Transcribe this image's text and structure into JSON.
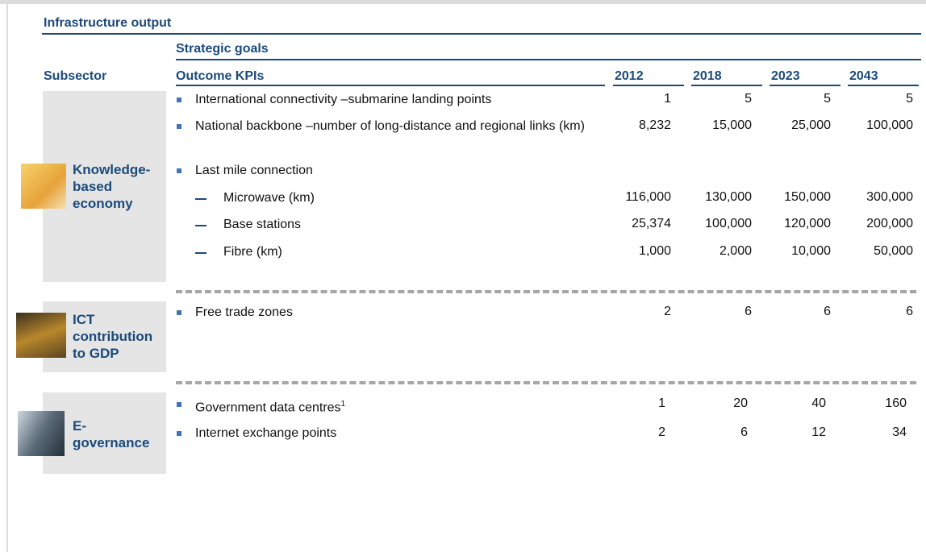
{
  "title": "Infrastructure output",
  "header": {
    "strategic_goals": "Strategic goals",
    "subsector": "Subsector",
    "outcome_kpis": "Outcome KPIs",
    "years": [
      "2012",
      "2018",
      "2023",
      "2043"
    ]
  },
  "sections": [
    {
      "subsector": "Knowledge-based economy",
      "rows": [
        {
          "kpi": "International connectivity –submarine landing points",
          "values": [
            "1",
            "5",
            "5",
            "5"
          ]
        },
        {
          "kpi": "National backbone –number of long-distance and regional links (km)",
          "values": [
            "8,232",
            "15,000",
            "25,000",
            "100,000"
          ]
        },
        {
          "kpi": "Last mile connection",
          "items": [
            {
              "kpi": "Microwave (km)",
              "values": [
                "116,000",
                "130,000",
                "150,000",
                "300,000"
              ]
            },
            {
              "kpi": "Base stations",
              "values": [
                "25,374",
                "100,000",
                "120,000",
                "200,000"
              ]
            },
            {
              "kpi": "Fibre (km)",
              "values": [
                "1,000",
                "2,000",
                "10,000",
                "50,000"
              ]
            }
          ]
        }
      ]
    },
    {
      "subsector": "ICT contribution to GDP",
      "rows": [
        {
          "kpi": "Free trade zones",
          "values": [
            "2",
            "6",
            "6",
            "6"
          ]
        }
      ]
    },
    {
      "subsector": "E-governance",
      "rows": [
        {
          "kpi": "Government data centres",
          "note": "1",
          "values": [
            "1",
            "20",
            "40",
            "160"
          ]
        },
        {
          "kpi": "Internet exchange points",
          "values": [
            "2",
            "6",
            "12",
            "34"
          ]
        }
      ]
    }
  ]
}
